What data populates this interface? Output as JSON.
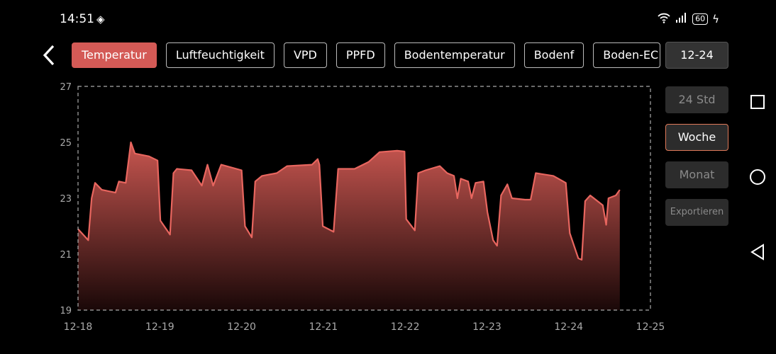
{
  "status": {
    "time": "14:51",
    "battery": "60",
    "icons": [
      "nfc-icon",
      "wifi-icon",
      "signal-icon",
      "battery-icon",
      "charging-icon"
    ]
  },
  "tabs": [
    {
      "label": "Temperatur",
      "active": true
    },
    {
      "label": "Luftfeuchtigkeit"
    },
    {
      "label": "VPD"
    },
    {
      "label": "PPFD"
    },
    {
      "label": "Bodentemperatur"
    },
    {
      "label": "Bodenf"
    },
    {
      "label": "Boden-EC"
    }
  ],
  "date_button": "12-24",
  "ranges": [
    {
      "label": "24 Std"
    },
    {
      "label": "Woche",
      "active": true
    },
    {
      "label": "Monat"
    },
    {
      "label": "Exportieren"
    }
  ],
  "colors": {
    "accent": "#d45a56",
    "line": "#e8665f",
    "active_outline": "#e07a5a"
  },
  "chart_data": {
    "type": "area",
    "ylim": [
      19,
      27
    ],
    "yticks": [
      "19",
      "21",
      "23",
      "25",
      "27"
    ],
    "xticks": [
      "12-18",
      "12-19",
      "12-20",
      "12-21",
      "12-22",
      "12-23",
      "12-24",
      "12-25"
    ],
    "grid": false,
    "series": [
      {
        "points": [
          [
            "12-18 00:00",
            21.9
          ],
          [
            "12-18 03:00",
            21.5
          ],
          [
            "12-18 04:00",
            23.0
          ],
          [
            "12-18 05:00",
            23.55
          ],
          [
            "12-18 07:00",
            23.3
          ],
          [
            "12-18 11:00",
            23.2
          ],
          [
            "12-18 12:00",
            23.6
          ],
          [
            "12-18 14:00",
            23.55
          ],
          [
            "12-18 15:30",
            25.0
          ],
          [
            "12-18 16:40",
            24.6
          ],
          [
            "12-18 20:50",
            24.5
          ],
          [
            "12-18 23:20",
            24.35
          ],
          [
            "12-19 00:10",
            22.2
          ],
          [
            "12-19 03:00",
            21.7
          ],
          [
            "12-19 04:00",
            23.9
          ],
          [
            "12-19 05:00",
            24.05
          ],
          [
            "12-19 09:20",
            24.0
          ],
          [
            "12-19 12:20",
            23.45
          ],
          [
            "12-19 14:00",
            24.2
          ],
          [
            "12-19 15:40",
            23.45
          ],
          [
            "12-19 18:00",
            24.2
          ],
          [
            "12-20 00:00",
            24.0
          ],
          [
            "12-20 01:00",
            22.0
          ],
          [
            "12-20 03:00",
            21.6
          ],
          [
            "12-20 04:00",
            23.6
          ],
          [
            "12-20 06:00",
            23.8
          ],
          [
            "12-20 10:20",
            23.9
          ],
          [
            "12-20 13:20",
            24.15
          ],
          [
            "12-20 20:40",
            24.2
          ],
          [
            "12-20 22:20",
            24.4
          ],
          [
            "12-20 22:50",
            24.2
          ],
          [
            "12-20 23:50",
            22.0
          ],
          [
            "12-21 03:00",
            21.8
          ],
          [
            "12-21 04:20",
            24.05
          ],
          [
            "12-21 09:10",
            24.05
          ],
          [
            "12-21 13:20",
            24.3
          ],
          [
            "12-21 16:30",
            24.65
          ],
          [
            "12-21 21:40",
            24.7
          ],
          [
            "12-21 23:50",
            24.67
          ],
          [
            "12-22 00:20",
            22.25
          ],
          [
            "12-22 02:50",
            21.85
          ],
          [
            "12-22 03:50",
            23.9
          ],
          [
            "12-22 06:00",
            24.0
          ],
          [
            "12-22 10:10",
            24.15
          ],
          [
            "12-22 12:20",
            23.9
          ],
          [
            "12-22 14:20",
            23.8
          ],
          [
            "12-22 15:20",
            23.0
          ],
          [
            "12-22 16:20",
            23.7
          ],
          [
            "12-22 18:30",
            23.6
          ],
          [
            "12-22 19:30",
            23.0
          ],
          [
            "12-22 20:40",
            23.55
          ],
          [
            "12-22 23:00",
            23.6
          ],
          [
            "12-23 00:10",
            22.5
          ],
          [
            "12-23 01:50",
            21.5
          ],
          [
            "12-23 03:00",
            21.3
          ],
          [
            "12-23 04:10",
            23.1
          ],
          [
            "12-23 06:00",
            23.5
          ],
          [
            "12-23 07:20",
            23.0
          ],
          [
            "12-23 11:10",
            22.95
          ],
          [
            "12-23 12:50",
            22.95
          ],
          [
            "12-23 14:20",
            23.9
          ],
          [
            "12-23 19:30",
            23.8
          ],
          [
            "12-23 23:10",
            23.55
          ],
          [
            "12-24 00:20",
            21.75
          ],
          [
            "12-24 02:50",
            20.85
          ],
          [
            "12-24 03:50",
            20.8
          ],
          [
            "12-24 04:50",
            22.9
          ],
          [
            "12-24 06:20",
            23.1
          ],
          [
            "12-24 10:00",
            22.75
          ],
          [
            "12-24 11:00",
            22.05
          ],
          [
            "12-24 11:40",
            23.0
          ],
          [
            "12-24 13:50",
            23.1
          ],
          [
            "12-24 15:00",
            23.3
          ]
        ]
      }
    ]
  }
}
